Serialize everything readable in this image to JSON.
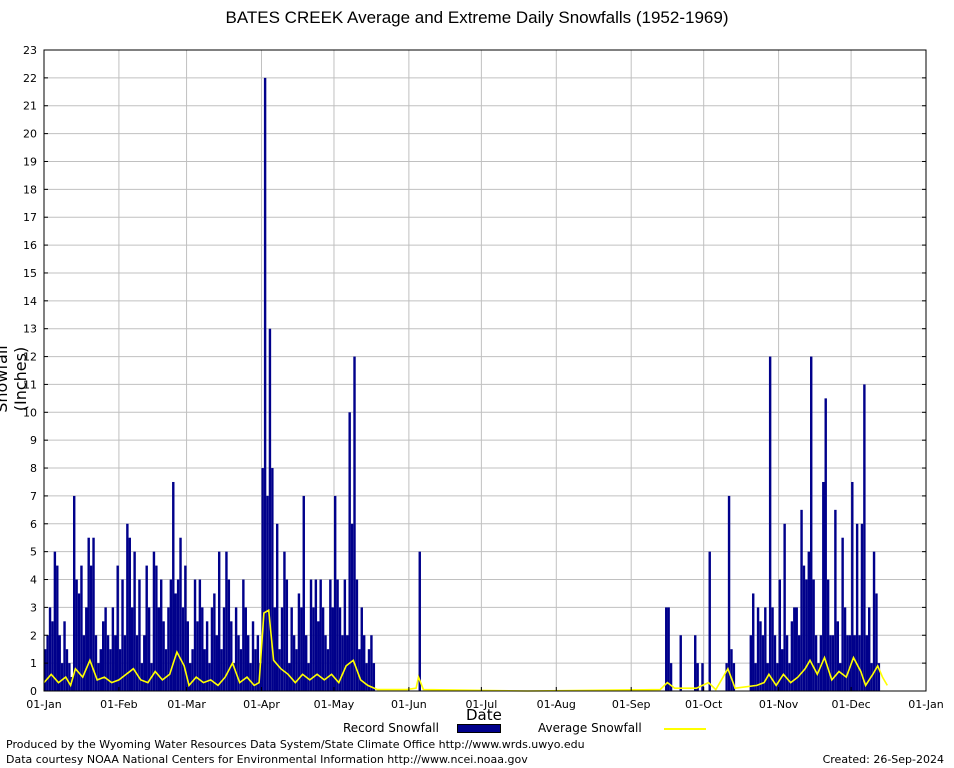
{
  "chart_data": {
    "type": "bar",
    "title": "BATES CREEK Average and Extreme Daily Snowfalls (1952-1969)",
    "xlabel": "Date",
    "ylabel": "Snowfall (Inches)",
    "ylim": [
      0,
      23
    ],
    "yticks": [
      "0",
      "1",
      "2",
      "3",
      "4",
      "5",
      "6",
      "7",
      "8",
      "9",
      "10",
      "11",
      "12",
      "13",
      "14",
      "15",
      "16",
      "17",
      "18",
      "19",
      "20",
      "21",
      "22",
      "23"
    ],
    "xticks": [
      "01-Jan",
      "01-Feb",
      "01-Mar",
      "01-Apr",
      "01-May",
      "01-Jun",
      "01-Jul",
      "01-Aug",
      "01-Sep",
      "01-Oct",
      "01-Nov",
      "01-Dec",
      "01-Jan"
    ],
    "xtick_days": [
      0,
      31,
      59,
      90,
      120,
      151,
      181,
      212,
      243,
      273,
      304,
      334,
      365
    ],
    "grid": true,
    "legend_placement": "bottom",
    "series": [
      {
        "name": "Record Snowfall",
        "kind": "bar",
        "color": "#00008b",
        "points": [
          [
            0,
            1.5
          ],
          [
            1,
            2
          ],
          [
            2,
            3
          ],
          [
            3,
            2.5
          ],
          [
            4,
            5
          ],
          [
            5,
            4.5
          ],
          [
            6,
            2
          ],
          [
            7,
            1
          ],
          [
            8,
            2.5
          ],
          [
            9,
            1.5
          ],
          [
            10,
            1
          ],
          [
            11,
            0.5
          ],
          [
            12,
            7
          ],
          [
            13,
            4
          ],
          [
            14,
            3.5
          ],
          [
            15,
            4.5
          ],
          [
            16,
            2
          ],
          [
            17,
            3
          ],
          [
            18,
            5.5
          ],
          [
            19,
            4.5
          ],
          [
            20,
            5.5
          ],
          [
            21,
            2
          ],
          [
            22,
            1
          ],
          [
            23,
            1.5
          ],
          [
            24,
            2.5
          ],
          [
            25,
            3
          ],
          [
            26,
            2
          ],
          [
            27,
            1.5
          ],
          [
            28,
            3
          ],
          [
            29,
            2
          ],
          [
            30,
            4.5
          ],
          [
            31,
            1.5
          ],
          [
            32,
            4
          ],
          [
            33,
            2
          ],
          [
            34,
            6
          ],
          [
            35,
            5.5
          ],
          [
            36,
            3
          ],
          [
            37,
            5
          ],
          [
            38,
            2
          ],
          [
            39,
            4
          ],
          [
            40,
            1
          ],
          [
            41,
            2
          ],
          [
            42,
            4.5
          ],
          [
            43,
            3
          ],
          [
            44,
            1
          ],
          [
            45,
            5
          ],
          [
            46,
            4.5
          ],
          [
            47,
            3
          ],
          [
            48,
            4
          ],
          [
            49,
            2.5
          ],
          [
            50,
            1.5
          ],
          [
            51,
            3
          ],
          [
            52,
            4
          ],
          [
            53,
            7.5
          ],
          [
            54,
            3.5
          ],
          [
            55,
            4
          ],
          [
            56,
            5.5
          ],
          [
            57,
            3
          ],
          [
            58,
            4.5
          ],
          [
            59,
            2.5
          ],
          [
            60,
            1
          ],
          [
            61,
            1.5
          ],
          [
            62,
            4
          ],
          [
            63,
            2.5
          ],
          [
            64,
            4
          ],
          [
            65,
            3
          ],
          [
            66,
            1.5
          ],
          [
            67,
            2.5
          ],
          [
            68,
            1
          ],
          [
            69,
            3
          ],
          [
            70,
            3.5
          ],
          [
            71,
            2
          ],
          [
            72,
            5
          ],
          [
            73,
            1.5
          ],
          [
            74,
            3
          ],
          [
            75,
            5
          ],
          [
            76,
            4
          ],
          [
            77,
            2.5
          ],
          [
            78,
            1
          ],
          [
            79,
            3
          ],
          [
            80,
            2
          ],
          [
            81,
            1.5
          ],
          [
            82,
            4
          ],
          [
            83,
            3
          ],
          [
            84,
            2
          ],
          [
            85,
            1
          ],
          [
            86,
            2.5
          ],
          [
            87,
            1.5
          ],
          [
            88,
            2
          ],
          [
            89,
            1
          ],
          [
            90,
            8
          ],
          [
            91,
            22
          ],
          [
            92,
            7
          ],
          [
            93,
            13
          ],
          [
            94,
            8
          ],
          [
            95,
            3
          ],
          [
            96,
            6
          ],
          [
            97,
            1.5
          ],
          [
            98,
            3
          ],
          [
            99,
            5
          ],
          [
            100,
            4
          ],
          [
            101,
            1
          ],
          [
            102,
            3
          ],
          [
            103,
            2
          ],
          [
            104,
            1.5
          ],
          [
            105,
            3.5
          ],
          [
            106,
            3
          ],
          [
            107,
            7
          ],
          [
            108,
            2
          ],
          [
            109,
            1
          ],
          [
            110,
            4
          ],
          [
            111,
            3
          ],
          [
            112,
            4
          ],
          [
            113,
            2.5
          ],
          [
            114,
            4
          ],
          [
            115,
            3
          ],
          [
            116,
            2
          ],
          [
            117,
            1.5
          ],
          [
            118,
            4
          ],
          [
            119,
            3
          ],
          [
            120,
            7
          ],
          [
            121,
            4
          ],
          [
            122,
            3
          ],
          [
            123,
            2
          ],
          [
            124,
            4
          ],
          [
            125,
            2
          ],
          [
            126,
            10
          ],
          [
            127,
            6
          ],
          [
            128,
            12
          ],
          [
            129,
            4
          ],
          [
            130,
            1.5
          ],
          [
            131,
            3
          ],
          [
            132,
            2
          ],
          [
            133,
            1
          ],
          [
            134,
            1.5
          ],
          [
            135,
            2
          ],
          [
            136,
            1
          ],
          [
            155,
            5
          ],
          [
            257,
            3
          ],
          [
            258,
            3
          ],
          [
            259,
            1
          ],
          [
            263,
            2
          ],
          [
            269,
            2
          ],
          [
            270,
            1
          ],
          [
            272,
            1
          ],
          [
            275,
            5
          ],
          [
            282,
            1
          ],
          [
            283,
            7
          ],
          [
            284,
            1.5
          ],
          [
            285,
            1
          ],
          [
            292,
            2
          ],
          [
            293,
            3.5
          ],
          [
            294,
            1
          ],
          [
            295,
            3
          ],
          [
            296,
            2.5
          ],
          [
            297,
            2
          ],
          [
            298,
            3
          ],
          [
            299,
            1
          ],
          [
            300,
            12
          ],
          [
            301,
            3
          ],
          [
            302,
            2
          ],
          [
            303,
            1
          ],
          [
            304,
            4
          ],
          [
            305,
            1.5
          ],
          [
            306,
            6
          ],
          [
            307,
            2
          ],
          [
            308,
            1
          ],
          [
            309,
            2.5
          ],
          [
            310,
            3
          ],
          [
            311,
            3
          ],
          [
            312,
            2
          ],
          [
            313,
            6.5
          ],
          [
            314,
            4.5
          ],
          [
            315,
            4
          ],
          [
            316,
            5
          ],
          [
            317,
            12
          ],
          [
            318,
            4
          ],
          [
            319,
            2
          ],
          [
            320,
            1
          ],
          [
            321,
            2
          ],
          [
            322,
            7.5
          ],
          [
            323,
            10.5
          ],
          [
            324,
            4
          ],
          [
            325,
            2
          ],
          [
            326,
            2
          ],
          [
            327,
            6.5
          ],
          [
            328,
            2.5
          ],
          [
            329,
            1
          ],
          [
            330,
            5.5
          ],
          [
            331,
            3
          ],
          [
            332,
            2
          ],
          [
            333,
            2
          ],
          [
            334,
            7.5
          ],
          [
            335,
            2
          ],
          [
            336,
            6
          ],
          [
            337,
            2
          ],
          [
            338,
            6
          ],
          [
            339,
            11
          ],
          [
            340,
            2
          ],
          [
            341,
            3
          ],
          [
            342,
            1
          ],
          [
            343,
            5
          ],
          [
            344,
            3.5
          ],
          [
            345,
            1
          ]
        ]
      },
      {
        "name": "Average Snowfall",
        "kind": "line",
        "color": "#ffff00",
        "points": [
          [
            0,
            0.3
          ],
          [
            3,
            0.6
          ],
          [
            6,
            0.3
          ],
          [
            9,
            0.5
          ],
          [
            11,
            0.2
          ],
          [
            13,
            0.8
          ],
          [
            16,
            0.5
          ],
          [
            19,
            1.1
          ],
          [
            22,
            0.4
          ],
          [
            25,
            0.5
          ],
          [
            28,
            0.3
          ],
          [
            31,
            0.4
          ],
          [
            34,
            0.6
          ],
          [
            37,
            0.8
          ],
          [
            40,
            0.4
          ],
          [
            43,
            0.3
          ],
          [
            46,
            0.7
          ],
          [
            49,
            0.4
          ],
          [
            52,
            0.6
          ],
          [
            55,
            1.4
          ],
          [
            58,
            0.9
          ],
          [
            60,
            0.2
          ],
          [
            63,
            0.5
          ],
          [
            66,
            0.3
          ],
          [
            69,
            0.4
          ],
          [
            72,
            0.2
          ],
          [
            75,
            0.5
          ],
          [
            78,
            1.0
          ],
          [
            81,
            0.3
          ],
          [
            84,
            0.5
          ],
          [
            87,
            0.2
          ],
          [
            89,
            0.3
          ],
          [
            91,
            2.8
          ],
          [
            93,
            2.9
          ],
          [
            95,
            1.1
          ],
          [
            98,
            0.8
          ],
          [
            101,
            0.6
          ],
          [
            104,
            0.3
          ],
          [
            107,
            0.6
          ],
          [
            110,
            0.4
          ],
          [
            113,
            0.6
          ],
          [
            116,
            0.4
          ],
          [
            119,
            0.6
          ],
          [
            122,
            0.3
          ],
          [
            125,
            0.9
          ],
          [
            128,
            1.1
          ],
          [
            131,
            0.4
          ],
          [
            134,
            0.2
          ],
          [
            138,
            0.05
          ],
          [
            150,
            0.05
          ],
          [
            154,
            0.1
          ],
          [
            155,
            0.5
          ],
          [
            157,
            0.05
          ],
          [
            200,
            0.0
          ],
          [
            255,
            0.05
          ],
          [
            258,
            0.3
          ],
          [
            261,
            0.1
          ],
          [
            270,
            0.1
          ],
          [
            275,
            0.3
          ],
          [
            278,
            0.05
          ],
          [
            283,
            0.8
          ],
          [
            286,
            0.1
          ],
          [
            295,
            0.2
          ],
          [
            298,
            0.3
          ],
          [
            300,
            0.6
          ],
          [
            303,
            0.2
          ],
          [
            306,
            0.6
          ],
          [
            309,
            0.3
          ],
          [
            312,
            0.5
          ],
          [
            315,
            0.8
          ],
          [
            317,
            1.1
          ],
          [
            320,
            0.6
          ],
          [
            323,
            1.2
          ],
          [
            326,
            0.4
          ],
          [
            329,
            0.7
          ],
          [
            332,
            0.5
          ],
          [
            335,
            1.2
          ],
          [
            338,
            0.7
          ],
          [
            340,
            0.2
          ],
          [
            343,
            0.6
          ],
          [
            345,
            0.9
          ],
          [
            347,
            0.5
          ],
          [
            349,
            0.2
          ]
        ]
      }
    ]
  },
  "footer": {
    "credit_line1": "Produced by the Wyoming Water Resources Data System/State Climate Office http://www.wrds.uwyo.edu",
    "credit_line2": "Data courtesy NOAA National Centers for Environmental Information http://www.ncei.noaa.gov",
    "created": "Created:  26-Sep-2024"
  }
}
